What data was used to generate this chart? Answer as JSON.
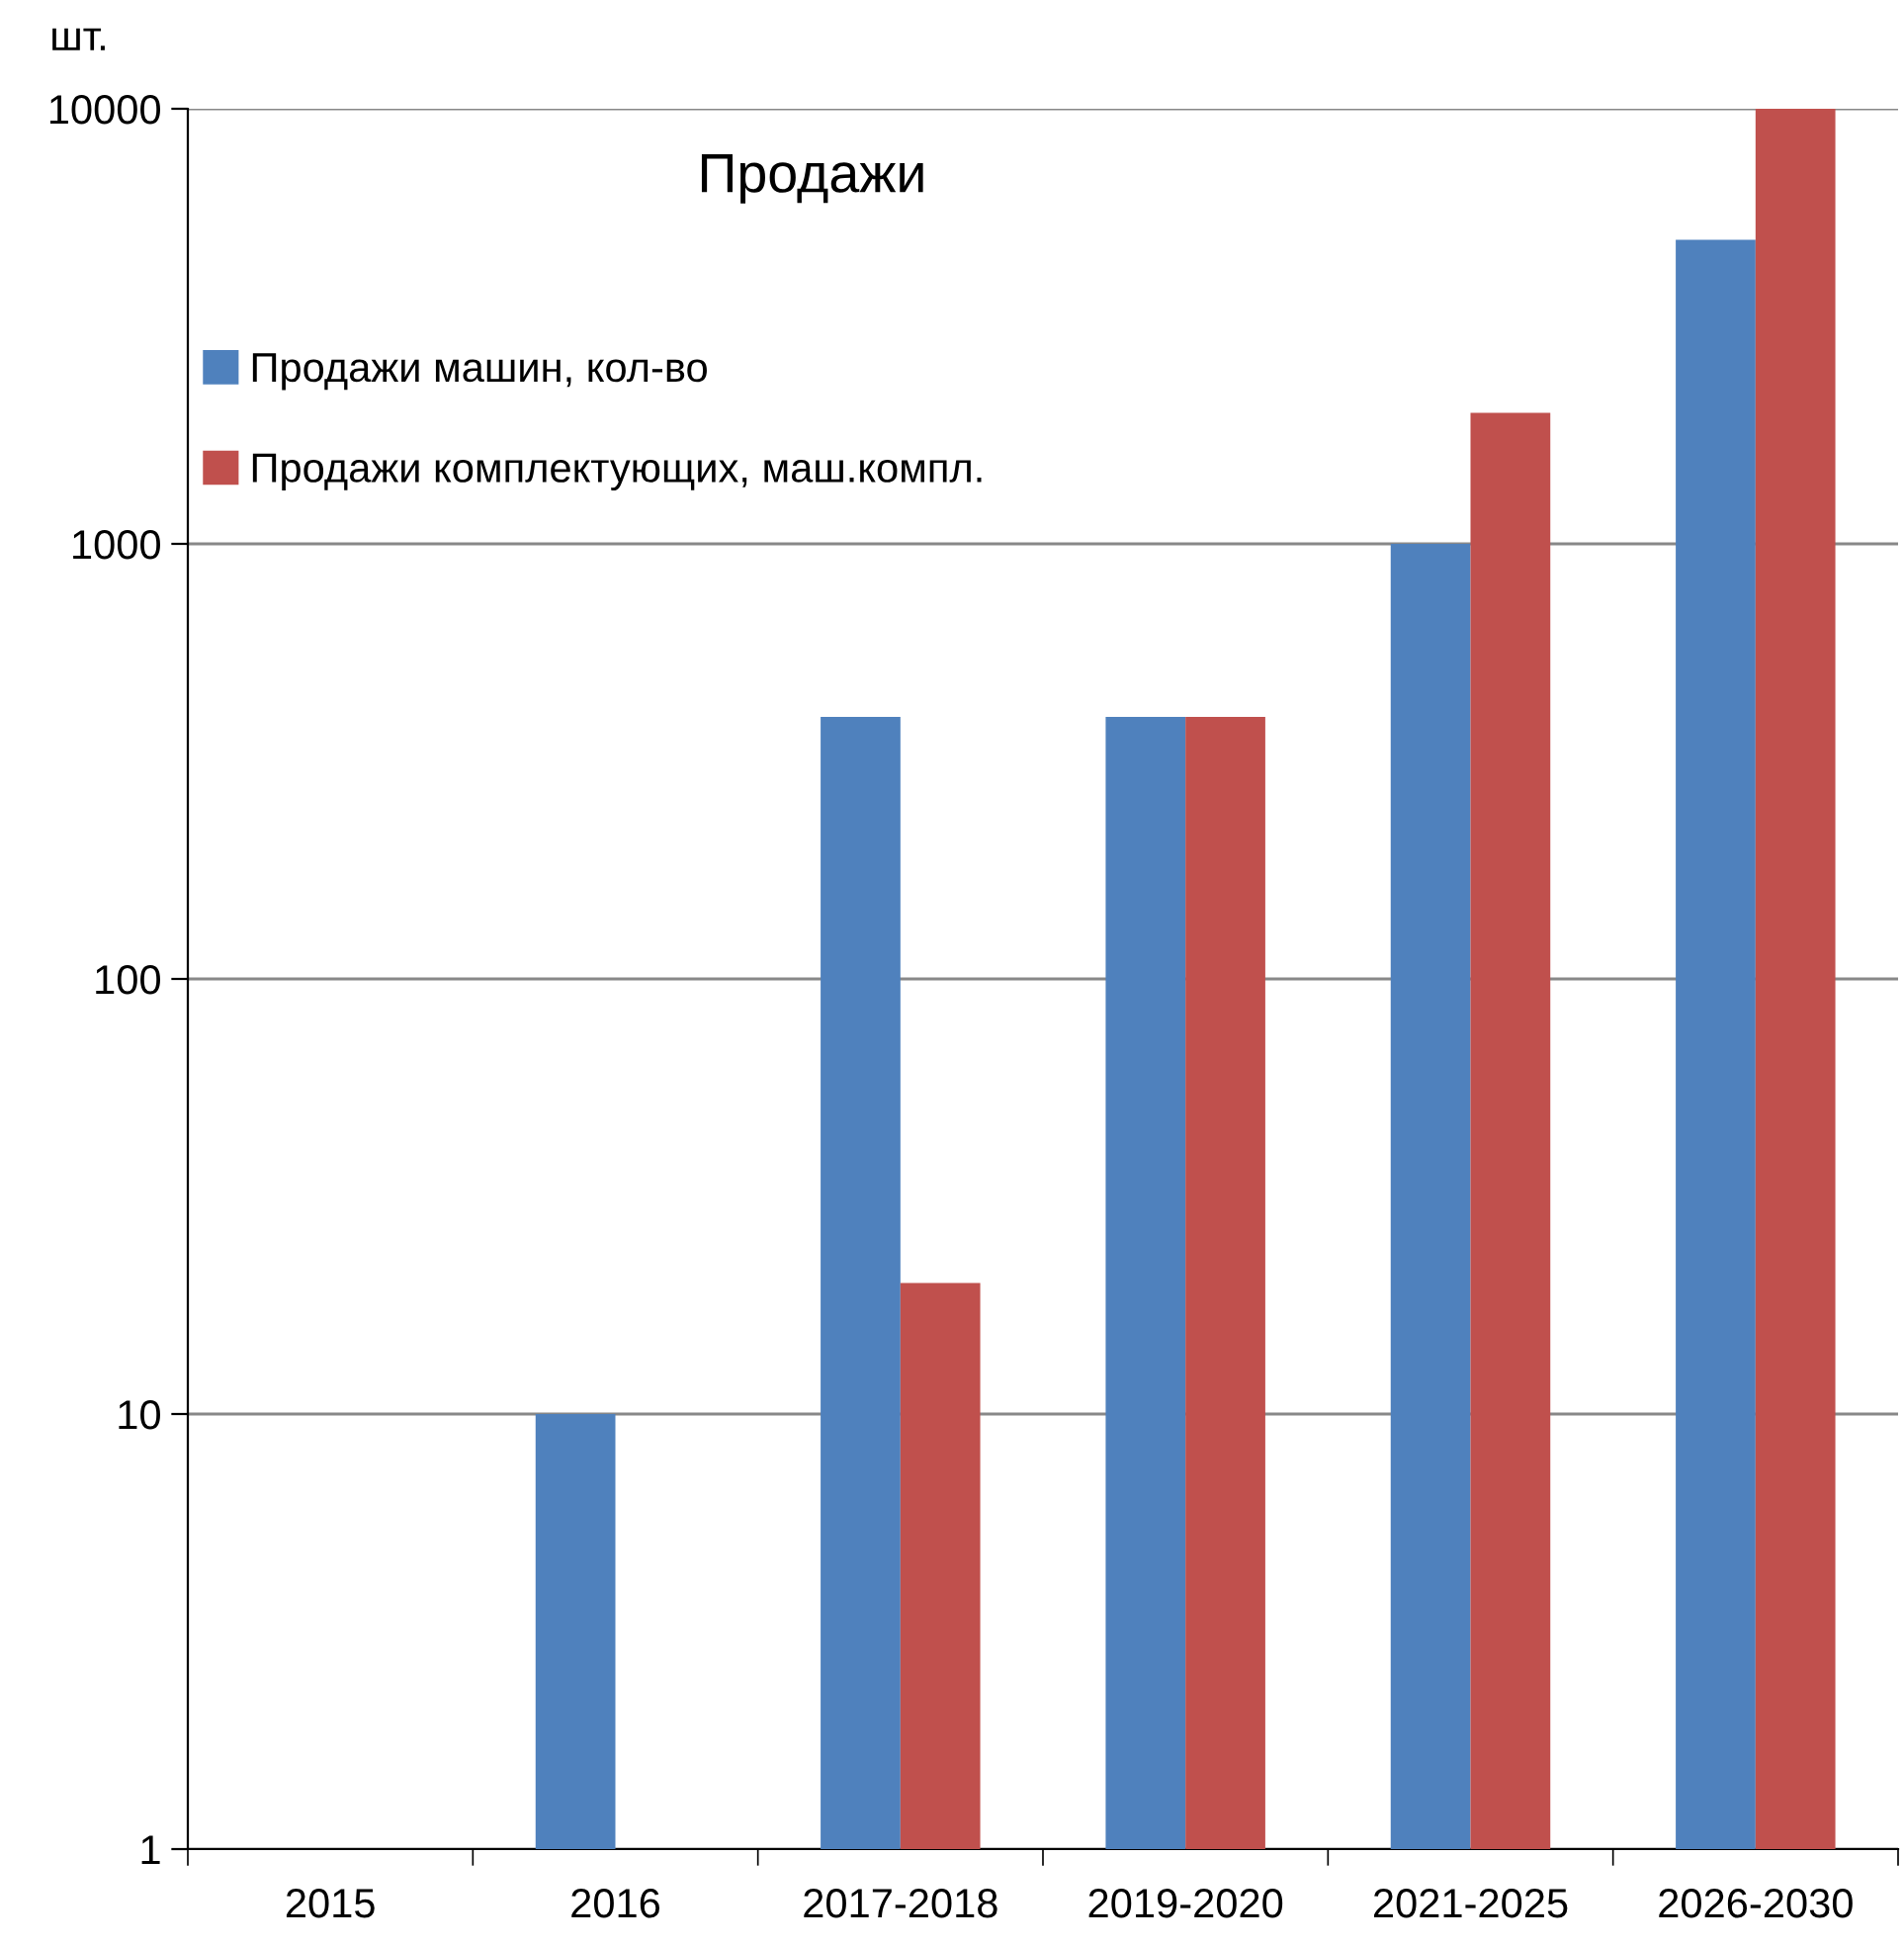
{
  "chart_data": {
    "type": "bar",
    "title": "Продажи",
    "ylabel": "шт.",
    "log": true,
    "categories": [
      "2015",
      "2016",
      "2017-2018",
      "2019-2020",
      "2021-2025",
      "2026-2030"
    ],
    "series": [
      {
        "name": "Продажи машин, кол-во",
        "color": "#4f81bd",
        "values": [
          null,
          10,
          400,
          400,
          1000,
          5000
        ]
      },
      {
        "name": "Продажи комплектующих, маш.компл.",
        "color": "#c0504d",
        "values": [
          null,
          null,
          20,
          400,
          2000,
          10000
        ]
      }
    ],
    "ylim": [
      1,
      10000
    ],
    "yticks": [
      1,
      10,
      100,
      1000,
      10000
    ],
    "grid": "y",
    "legend": "top left"
  }
}
